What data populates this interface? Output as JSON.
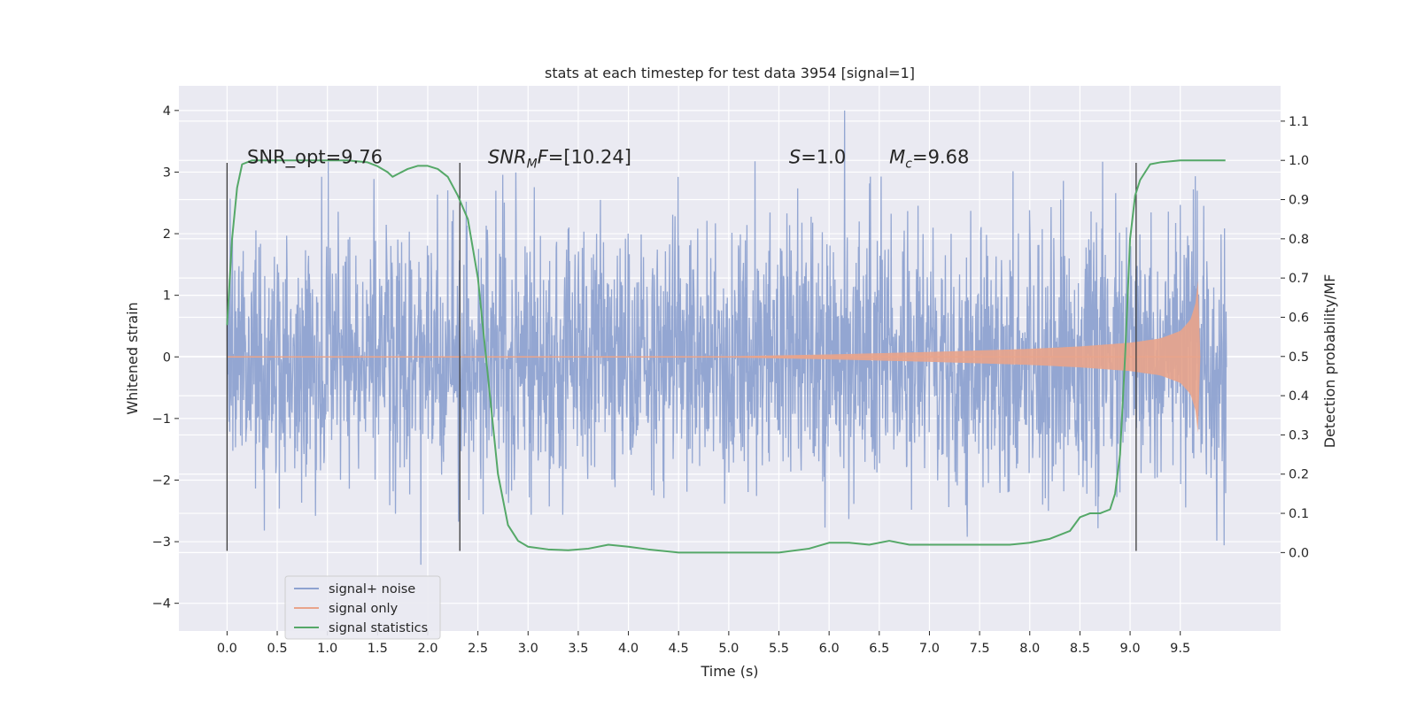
{
  "chart_data": {
    "type": "line",
    "title": "stats at each timestep for test data 3954 [signal=1]",
    "xlabel": "Time (s)",
    "ylabel": "Whitened strain",
    "y2label": "Detection probability/MF",
    "xlim": [
      -0.48,
      10.5
    ],
    "ylim": [
      -4.45,
      4.4
    ],
    "y2lim": [
      -0.2,
      1.19
    ],
    "xticks": [
      0.0,
      0.5,
      1.0,
      1.5,
      2.0,
      2.5,
      3.0,
      3.5,
      4.0,
      4.5,
      5.0,
      5.5,
      6.0,
      6.5,
      7.0,
      7.5,
      8.0,
      8.5,
      9.0,
      9.5
    ],
    "xtick_labels": [
      "0.0",
      "0.5",
      "1.0",
      "1.5",
      "2.0",
      "2.5",
      "3.0",
      "3.5",
      "4.0",
      "4.5",
      "5.0",
      "5.5",
      "6.0",
      "6.5",
      "7.0",
      "7.5",
      "8.0",
      "8.5",
      "9.0",
      "9.5"
    ],
    "yticks": [
      -4,
      -3,
      -2,
      -1,
      0,
      1,
      2,
      3,
      4
    ],
    "ytick_labels": [
      "−4",
      "−3",
      "−2",
      "−1",
      "0",
      "1",
      "2",
      "3",
      "4"
    ],
    "y2ticks": [
      0.0,
      0.1,
      0.2,
      0.3,
      0.4,
      0.5,
      0.6,
      0.7,
      0.8,
      0.9,
      1.0,
      1.1
    ],
    "y2tick_labels": [
      "0.0",
      "0.1",
      "0.2",
      "0.3",
      "0.4",
      "0.5",
      "0.6",
      "0.7",
      "0.8",
      "0.9",
      "1.0",
      "1.1"
    ],
    "grid": true,
    "legend_position": "lower-left",
    "legend": [
      "signal+ noise",
      "signal only",
      "signal statistics"
    ],
    "annotations": [
      {
        "text": "SNR_opt=9.76",
        "x": 0.2,
        "y": 3.2
      },
      {
        "text": "SNRMF=[10.24]",
        "x": 2.6,
        "y": 3.2
      },
      {
        "text": "S=1.0",
        "x": 5.6,
        "y": 3.2
      },
      {
        "text": "Mc=9.68",
        "x": 6.6,
        "y": 3.2
      }
    ],
    "vertical_lines": [
      0.0,
      2.32,
      9.06
    ],
    "vertical_line_range": [
      -3.15,
      3.15
    ],
    "series": [
      {
        "name": "signal+ noise",
        "axis": "left",
        "color": "#8ea2d0",
        "x_range": [
          0.0,
          9.96
        ],
        "note_values": "dense whitened noise spanning roughly -3.4 to 4.0",
        "band_1sigma": 1.0
      },
      {
        "name": "signal only",
        "axis": "left",
        "color": "#e9a48b",
        "x_range": [
          0.0,
          9.7
        ],
        "amplitude_envelope": {
          "x": [
            0.0,
            5.0,
            6.0,
            7.0,
            8.0,
            8.5,
            9.0,
            9.3,
            9.5,
            9.6,
            9.65,
            9.68,
            9.7
          ],
          "y": [
            0.0,
            0.01,
            0.04,
            0.08,
            0.13,
            0.17,
            0.23,
            0.3,
            0.42,
            0.6,
            0.85,
            1.3,
            0.0
          ]
        }
      },
      {
        "name": "signal statistics",
        "axis": "right",
        "color": "#55a868",
        "x": [
          0.0,
          0.05,
          0.1,
          0.15,
          0.25,
          0.4,
          0.6,
          0.8,
          1.0,
          1.2,
          1.4,
          1.5,
          1.6,
          1.65,
          1.7,
          1.8,
          1.9,
          2.0,
          2.1,
          2.2,
          2.3,
          2.4,
          2.5,
          2.6,
          2.7,
          2.8,
          2.9,
          3.0,
          3.2,
          3.4,
          3.6,
          3.8,
          4.0,
          4.2,
          4.5,
          5.0,
          5.5,
          5.8,
          6.0,
          6.2,
          6.4,
          6.6,
          6.8,
          7.0,
          7.4,
          7.8,
          8.0,
          8.2,
          8.4,
          8.5,
          8.6,
          8.7,
          8.8,
          8.85,
          8.9,
          8.95,
          9.0,
          9.05,
          9.1,
          9.2,
          9.3,
          9.5,
          9.7,
          9.95
        ],
        "y": [
          0.58,
          0.8,
          0.93,
          0.99,
          1.0,
          1.0,
          1.0,
          1.0,
          1.0,
          1.0,
          0.995,
          0.985,
          0.97,
          0.958,
          0.965,
          0.978,
          0.986,
          0.986,
          0.978,
          0.958,
          0.91,
          0.85,
          0.7,
          0.45,
          0.2,
          0.07,
          0.03,
          0.015,
          0.008,
          0.006,
          0.01,
          0.02,
          0.015,
          0.008,
          0.0,
          0.0,
          0.0,
          0.01,
          0.025,
          0.025,
          0.02,
          0.03,
          0.02,
          0.02,
          0.02,
          0.02,
          0.025,
          0.035,
          0.055,
          0.09,
          0.1,
          0.1,
          0.11,
          0.15,
          0.25,
          0.5,
          0.8,
          0.91,
          0.95,
          0.99,
          0.995,
          1.0,
          1.0,
          1.0
        ]
      }
    ]
  }
}
